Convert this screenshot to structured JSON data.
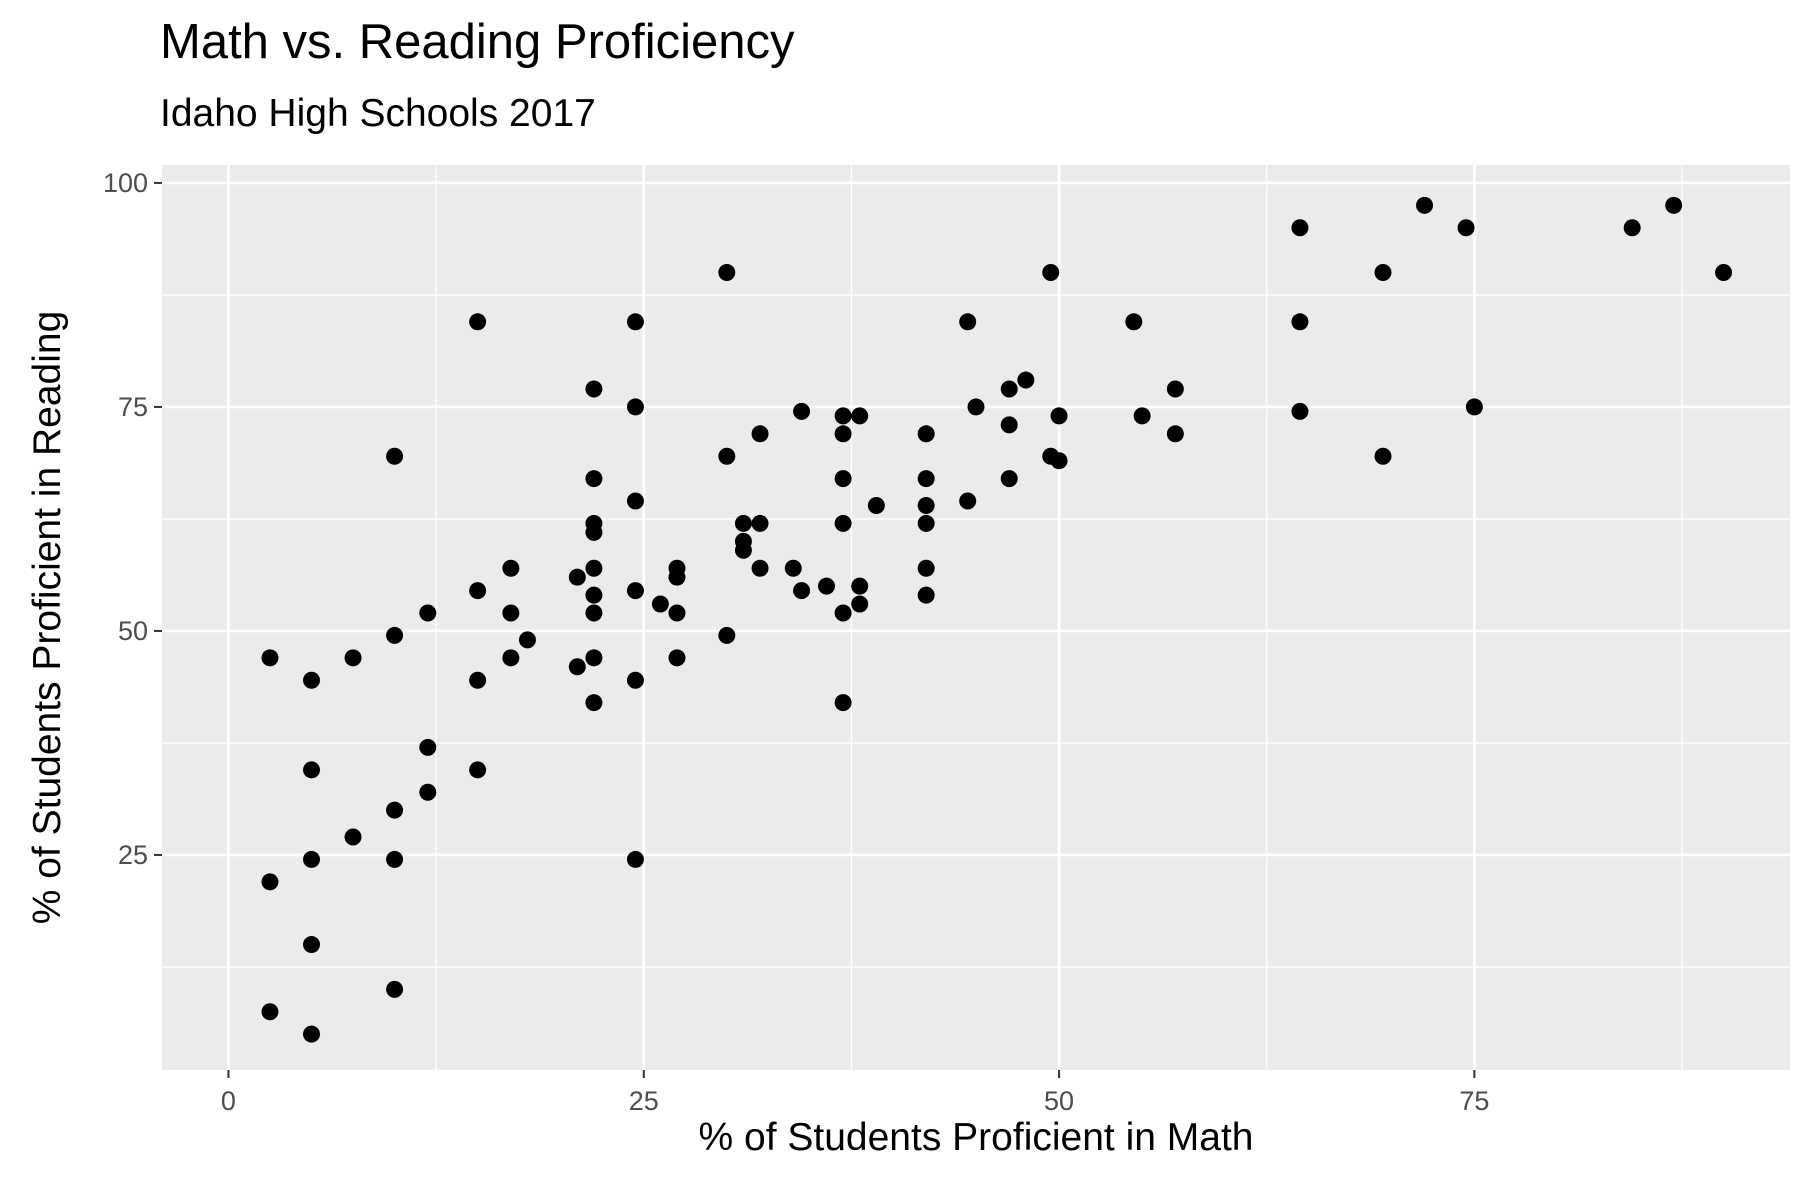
{
  "chart_data": {
    "type": "scatter",
    "title": "Math vs. Reading Proficiency",
    "subtitle": "Idaho High Schools 2017",
    "xlabel": "% of Students Proficient in Math",
    "ylabel": "% of Students Proficient in Reading",
    "xlim": [
      -4,
      94
    ],
    "ylim": [
      1,
      102
    ],
    "x_ticks": [
      0,
      25,
      50,
      75
    ],
    "y_ticks": [
      25,
      50,
      75,
      100
    ],
    "x_minor_ticks": [
      12.5,
      37.5,
      62.5,
      87.5
    ],
    "y_minor_ticks": [
      12.5,
      37.5,
      62.5,
      87.5
    ],
    "grid": true,
    "colors": {
      "panel": "#EBEBEB",
      "grid": "#FFFFFF",
      "point": "#000000",
      "tick": "#4D4D4D"
    },
    "points": [
      [
        2.5,
        22
      ],
      [
        2.5,
        47
      ],
      [
        2.5,
        7.5
      ],
      [
        5,
        44.5
      ],
      [
        5,
        34.5
      ],
      [
        5,
        24.5
      ],
      [
        5,
        15
      ],
      [
        5,
        5
      ],
      [
        7.5,
        47
      ],
      [
        7.5,
        27
      ],
      [
        10,
        69.5
      ],
      [
        10,
        49.5
      ],
      [
        10,
        30
      ],
      [
        10,
        24.5
      ],
      [
        10,
        10
      ],
      [
        12,
        52
      ],
      [
        12,
        37
      ],
      [
        12,
        32
      ],
      [
        15,
        84.5
      ],
      [
        15,
        54.5
      ],
      [
        15,
        44.5
      ],
      [
        15,
        34.5
      ],
      [
        17,
        57
      ],
      [
        17,
        52
      ],
      [
        17,
        47
      ],
      [
        18,
        49
      ],
      [
        21,
        56
      ],
      [
        21,
        46
      ],
      [
        22,
        77
      ],
      [
        22,
        67
      ],
      [
        22,
        62
      ],
      [
        22,
        61
      ],
      [
        22,
        57
      ],
      [
        22,
        54
      ],
      [
        22,
        52
      ],
      [
        22,
        47
      ],
      [
        22,
        42
      ],
      [
        24.5,
        84.5
      ],
      [
        24.5,
        75
      ],
      [
        24.5,
        64.5
      ],
      [
        24.5,
        54.5
      ],
      [
        24.5,
        44.5
      ],
      [
        24.5,
        24.5
      ],
      [
        26,
        53
      ],
      [
        27,
        57
      ],
      [
        27,
        56
      ],
      [
        27,
        52
      ],
      [
        27,
        47
      ],
      [
        30,
        90
      ],
      [
        30,
        69.5
      ],
      [
        30,
        49.5
      ],
      [
        31,
        62
      ],
      [
        31,
        60
      ],
      [
        31,
        59
      ],
      [
        32,
        72
      ],
      [
        32,
        62
      ],
      [
        32,
        57
      ],
      [
        34,
        57
      ],
      [
        34.5,
        74.5
      ],
      [
        34.5,
        54.5
      ],
      [
        36,
        55
      ],
      [
        37,
        74
      ],
      [
        37,
        72
      ],
      [
        37,
        67
      ],
      [
        37,
        62
      ],
      [
        37,
        52
      ],
      [
        37,
        42
      ],
      [
        38,
        74
      ],
      [
        38,
        55
      ],
      [
        38,
        53
      ],
      [
        39,
        64
      ],
      [
        42,
        72
      ],
      [
        42,
        67
      ],
      [
        42,
        64
      ],
      [
        42,
        62
      ],
      [
        42,
        57
      ],
      [
        42,
        54
      ],
      [
        44.5,
        84.5
      ],
      [
        44.5,
        64.5
      ],
      [
        45,
        75
      ],
      [
        47,
        77
      ],
      [
        47,
        73
      ],
      [
        47,
        67
      ],
      [
        48,
        78
      ],
      [
        49.5,
        90
      ],
      [
        49.5,
        69.5
      ],
      [
        50,
        74
      ],
      [
        50,
        69
      ],
      [
        54.5,
        84.5
      ],
      [
        55,
        74
      ],
      [
        57,
        77
      ],
      [
        57,
        72
      ],
      [
        64.5,
        95
      ],
      [
        64.5,
        84.5
      ],
      [
        64.5,
        74.5
      ],
      [
        69.5,
        90
      ],
      [
        69.5,
        69.5
      ],
      [
        72,
        97.5
      ],
      [
        74.5,
        95
      ],
      [
        75,
        75
      ],
      [
        84.5,
        95
      ],
      [
        87,
        97.5
      ],
      [
        90,
        90
      ]
    ]
  }
}
